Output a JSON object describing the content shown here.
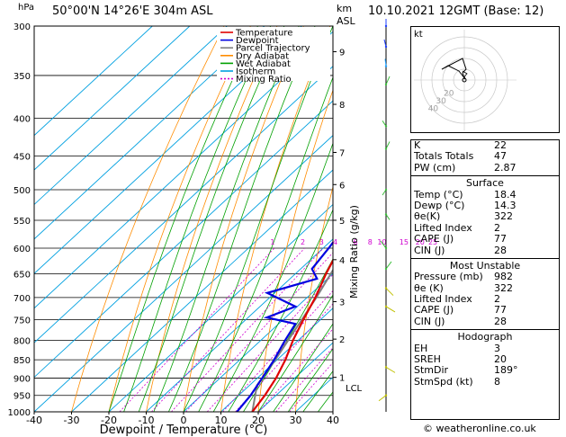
{
  "header": {
    "location": "50°00'N  14°26'E  304m  ASL",
    "datetime": "10.10.2021  12GMT  (Base: 12)",
    "left_unit": "hPa",
    "right_unit_km": "km",
    "right_unit_asl": "ASL"
  },
  "chart_data": {
    "type": "skewt",
    "xlabel": "Dewpoint / Temperature (°C)",
    "ylabel_left": "hPa",
    "ylabel_right": "Mixing Ratio (g/kg)",
    "pressure_levels": [
      300,
      350,
      400,
      450,
      500,
      550,
      600,
      650,
      700,
      750,
      800,
      850,
      900,
      950,
      1000
    ],
    "temperature_ticks": [
      -40,
      -30,
      -20,
      -10,
      0,
      10,
      20,
      30,
      40
    ],
    "km_ticks": [
      {
        "label": "9",
        "p": 325
      },
      {
        "label": "8",
        "p": 383
      },
      {
        "label": "7",
        "p": 445
      },
      {
        "label": "6",
        "p": 492
      },
      {
        "label": "5",
        "p": 550
      },
      {
        "label": "4",
        "p": 622
      },
      {
        "label": "3",
        "p": 709
      },
      {
        "label": "2",
        "p": 797
      },
      {
        "label": "1",
        "p": 898
      }
    ],
    "lcl_label": "LCL",
    "lcl_pressure": 921,
    "mixing_ratio_labels": [
      "1",
      "2",
      "3",
      "4",
      "6",
      "8",
      "10",
      "15",
      "20",
      "25"
    ],
    "legend": [
      {
        "name": "Temperature",
        "color": "#e00000",
        "style": "solid"
      },
      {
        "name": "Dewpoint",
        "color": "#0000e0",
        "style": "solid"
      },
      {
        "name": "Parcel Trajectory",
        "color": "#808080",
        "style": "solid"
      },
      {
        "name": "Dry Adiabat",
        "color": "#ff8c00",
        "style": "solid"
      },
      {
        "name": "Wet Adiabat",
        "color": "#00a000",
        "style": "solid"
      },
      {
        "name": "Isotherm",
        "color": "#00a0e0",
        "style": "solid"
      },
      {
        "name": "Mixing Ratio",
        "color": "#d000d0",
        "style": "dotted"
      }
    ],
    "temperature_profile": [
      {
        "p": 1000,
        "t": 18.4
      },
      {
        "p": 950,
        "t": 17.0
      },
      {
        "p": 900,
        "t": 15.0
      },
      {
        "p": 850,
        "t": 12.2
      },
      {
        "p": 800,
        "t": 8.6
      },
      {
        "p": 750,
        "t": 5.4
      },
      {
        "p": 700,
        "t": 2.2
      },
      {
        "p": 650,
        "t": -1.8
      },
      {
        "p": 600,
        "t": -5.6
      },
      {
        "p": 550,
        "t": -9.6
      },
      {
        "p": 500,
        "t": -14.6
      },
      {
        "p": 450,
        "t": -20.0
      },
      {
        "p": 400,
        "t": -26.5
      },
      {
        "p": 350,
        "t": -34.0
      },
      {
        "p": 300,
        "t": -42.0
      }
    ],
    "dewpoint_profile": [
      {
        "p": 1000,
        "t": 14.3
      },
      {
        "p": 950,
        "t": 13.2
      },
      {
        "p": 900,
        "t": 11.3
      },
      {
        "p": 850,
        "t": 9.2
      },
      {
        "p": 800,
        "t": 6.5
      },
      {
        "p": 760,
        "t": 4.5
      },
      {
        "p": 745,
        "t": -5.0
      },
      {
        "p": 720,
        "t": -0.5
      },
      {
        "p": 690,
        "t": -12.0
      },
      {
        "p": 660,
        "t": -2.8
      },
      {
        "p": 640,
        "t": -7.0
      },
      {
        "p": 600,
        "t": -8.5
      },
      {
        "p": 550,
        "t": -11.0
      },
      {
        "p": 500,
        "t": -17.0
      },
      {
        "p": 450,
        "t": -23.0
      },
      {
        "p": 400,
        "t": -30.0
      },
      {
        "p": 360,
        "t": -36.0
      },
      {
        "p": 330,
        "t": -38.0
      },
      {
        "p": 310,
        "t": -37.0
      },
      {
        "p": 300,
        "t": -42.0
      }
    ],
    "parcel_profile": [
      {
        "p": 1000,
        "t": 18.4
      },
      {
        "p": 921,
        "t": 12.0
      },
      {
        "p": 850,
        "t": 9.5
      },
      {
        "p": 700,
        "t": 2.5
      },
      {
        "p": 600,
        "t": -3.8
      },
      {
        "p": 500,
        "t": -12.0
      },
      {
        "p": 400,
        "t": -24.0
      },
      {
        "p": 300,
        "t": -40.0
      }
    ]
  },
  "hodograph": {
    "label": "kt",
    "ring_labels": [
      "20",
      "30",
      "40"
    ]
  },
  "stats": {
    "top": [
      {
        "key": "K",
        "value": "22"
      },
      {
        "key": "Totals Totals",
        "value": "47"
      },
      {
        "key": "PW (cm)",
        "value": "2.87"
      }
    ],
    "surface_title": "Surface",
    "surface": [
      {
        "key": "Temp (°C)",
        "value": "18.4"
      },
      {
        "key": "Dewp (°C)",
        "value": "14.3"
      },
      {
        "key": "θe(K)",
        "value": "322"
      },
      {
        "key": "Lifted Index",
        "value": "2"
      },
      {
        "key": "CAPE (J)",
        "value": "77"
      },
      {
        "key": "CIN (J)",
        "value": "28"
      }
    ],
    "mu_title": "Most Unstable",
    "mu": [
      {
        "key": "Pressure (mb)",
        "value": "982"
      },
      {
        "key": "θe (K)",
        "value": "322"
      },
      {
        "key": "Lifted Index",
        "value": "2"
      },
      {
        "key": "CAPE (J)",
        "value": "77"
      },
      {
        "key": "CIN (J)",
        "value": "28"
      }
    ],
    "hodo_title": "Hodograph",
    "hodo": [
      {
        "key": "EH",
        "value": "3"
      },
      {
        "key": "SREH",
        "value": "20"
      },
      {
        "key": "StmDir",
        "value": "189°"
      },
      {
        "key": "StmSpd (kt)",
        "value": "8"
      }
    ]
  },
  "footer": {
    "copyright": "© weatheronline.co.uk"
  },
  "colors": {
    "temperature": "#e00000",
    "dewpoint": "#0000e0",
    "parcel": "#808080",
    "dry_adiabat": "#ff8c00",
    "wet_adiabat": "#00a000",
    "isotherm": "#00a0e0",
    "mixing_ratio": "#d000d0",
    "wind": "#40c040"
  }
}
